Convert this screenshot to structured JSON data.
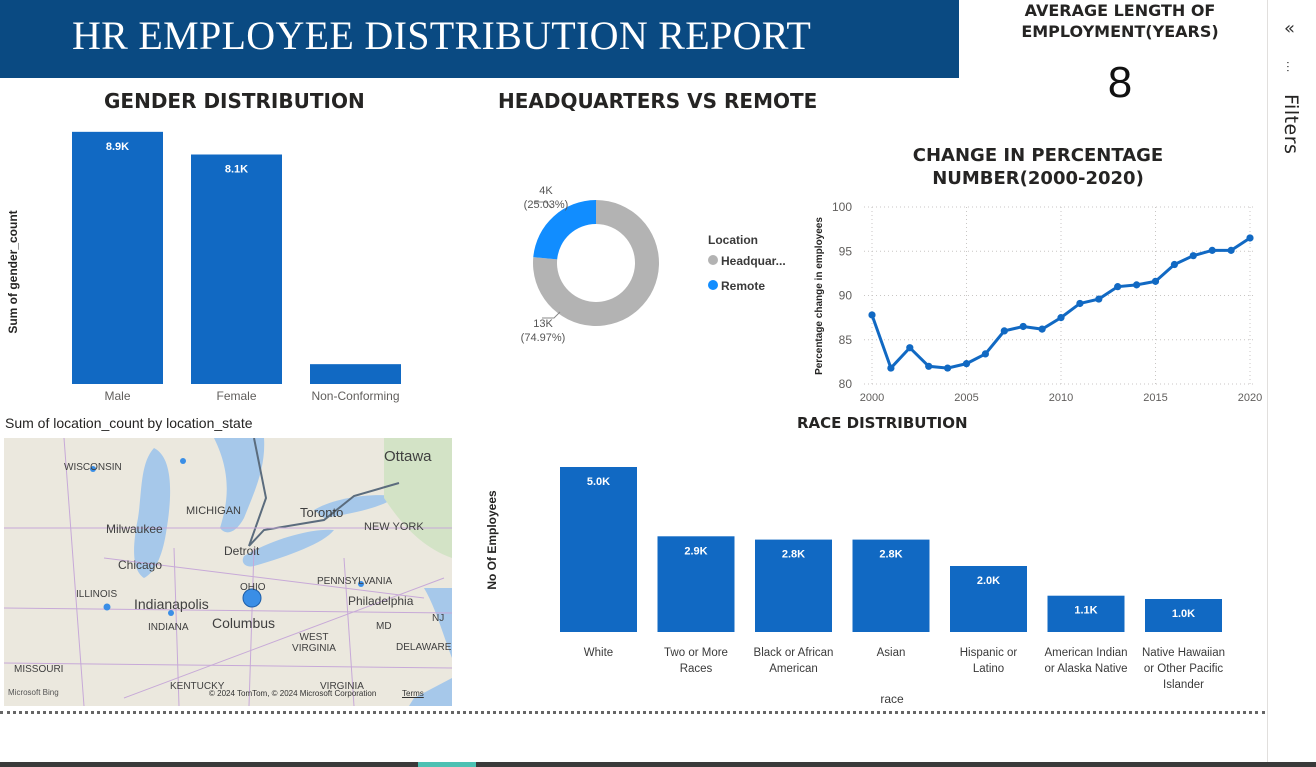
{
  "header": {
    "title": "HR EMPLOYEE DISTRIBUTION REPORT"
  },
  "kpi": {
    "label_line1": "AVERAGE LENGTH OF",
    "label_line2": "EMPLOYMENT(YEARS)",
    "value": "8"
  },
  "filters_pane": {
    "label": "Filters",
    "collapse_glyph": "«",
    "funnel_glyph": "⫶"
  },
  "gender_chart": {
    "title": "GENDER DISTRIBUTION",
    "ylabel": "Sum of gender_count"
  },
  "hq_chart": {
    "title": "HEADQUARTERS VS REMOTE",
    "legend_title": "Location",
    "legend_items": [
      "Headquar...",
      "Remote"
    ]
  },
  "trend_chart": {
    "title_line1": "CHANGE IN PERCENTAGE",
    "title_line2": "NUMBER(2000-2020)",
    "ylabel": "Percentage change in employees"
  },
  "map_visual": {
    "title": "Sum of location_count by location_state",
    "attribution": "© 2024 TomTom, © 2024 Microsoft Corporation",
    "terms": "Terms",
    "brand": "Microsoft Bing",
    "places": [
      "WISCONSIN",
      "MICHIGAN",
      "Milwaukee",
      "Chicago",
      "Detroit",
      "Toronto",
      "Ottawa",
      "NEW YORK",
      "ILLINOIS",
      "Indianapolis",
      "INDIANA",
      "OHIO",
      "Columbus",
      "PENNSYLVANIA",
      "Philadelphia",
      "WEST VIRGINIA",
      "MD",
      "NJ",
      "DELAWARE",
      "MISSOURI",
      "KENTUCKY",
      "VIRGINIA"
    ]
  },
  "race_chart": {
    "title": "RACE DISTRIBUTION",
    "ylabel": "No Of Employees",
    "xlabel": "race"
  },
  "colors": {
    "banner": "#0a4a82",
    "bar": "#1169c3",
    "remote": "#118dff",
    "headquarters": "#b3b3b3"
  },
  "chart_data": [
    {
      "type": "bar",
      "title": "GENDER DISTRIBUTION",
      "ylabel": "Sum of gender_count",
      "categories": [
        "Male",
        "Female",
        "Non-Conforming"
      ],
      "values": [
        8900,
        8100,
        700
      ],
      "data_labels": [
        "8.9K",
        "8.1K",
        ""
      ],
      "ylim": [
        0,
        9000
      ]
    },
    {
      "type": "pie",
      "title": "HEADQUARTERS VS REMOTE",
      "legend_title": "Location",
      "categories": [
        "Headquarters",
        "Remote"
      ],
      "values": [
        13000,
        4000
      ],
      "percent_labels": [
        "13K\n(74.97%)",
        "4K\n(25.03%)"
      ],
      "shares": [
        74.97,
        25.03
      ]
    },
    {
      "type": "line",
      "title": "CHANGE IN PERCENTAGE NUMBER(2000-2020)",
      "ylabel": "Percentage change in employees",
      "x": [
        2000,
        2001,
        2002,
        2003,
        2004,
        2005,
        2006,
        2007,
        2008,
        2009,
        2010,
        2011,
        2012,
        2013,
        2014,
        2015,
        2016,
        2017,
        2018,
        2019,
        2020
      ],
      "values": [
        87.8,
        81.8,
        84.1,
        82.0,
        81.8,
        82.3,
        83.4,
        86.0,
        86.5,
        86.2,
        87.5,
        89.1,
        89.6,
        91.0,
        91.2,
        91.6,
        93.5,
        94.5,
        95.1,
        95.1,
        96.5
      ],
      "xticks": [
        2000,
        2005,
        2010,
        2015,
        2020
      ],
      "yticks": [
        80,
        85,
        90,
        95,
        100
      ],
      "xlim": [
        2000,
        2020
      ],
      "ylim": [
        80,
        100
      ],
      "grid": true
    },
    {
      "type": "bar",
      "title": "RACE DISTRIBUTION",
      "ylabel": "No Of Employees",
      "xlabel": "race",
      "categories": [
        "White",
        "Two or More Races",
        "Black or African American",
        "Asian",
        "Hispanic or Latino",
        "American Indian or Alaska Native",
        "Native Hawaiian or Other Pacific Islander"
      ],
      "category_lines": [
        [
          "White"
        ],
        [
          "Two or More",
          "Races"
        ],
        [
          "Black or African",
          "American"
        ],
        [
          "Asian"
        ],
        [
          "Hispanic or",
          "Latino"
        ],
        [
          "American Indian",
          "or Alaska Native"
        ],
        [
          "Native Hawaiian",
          "or Other Pacific",
          "Islander"
        ]
      ],
      "values": [
        5000,
        2900,
        2800,
        2800,
        2000,
        1100,
        1000
      ],
      "data_labels": [
        "5.0K",
        "2.9K",
        "2.8K",
        "2.8K",
        "2.0K",
        "1.1K",
        "1.0K"
      ],
      "ylim": [
        0,
        5000
      ]
    }
  ]
}
